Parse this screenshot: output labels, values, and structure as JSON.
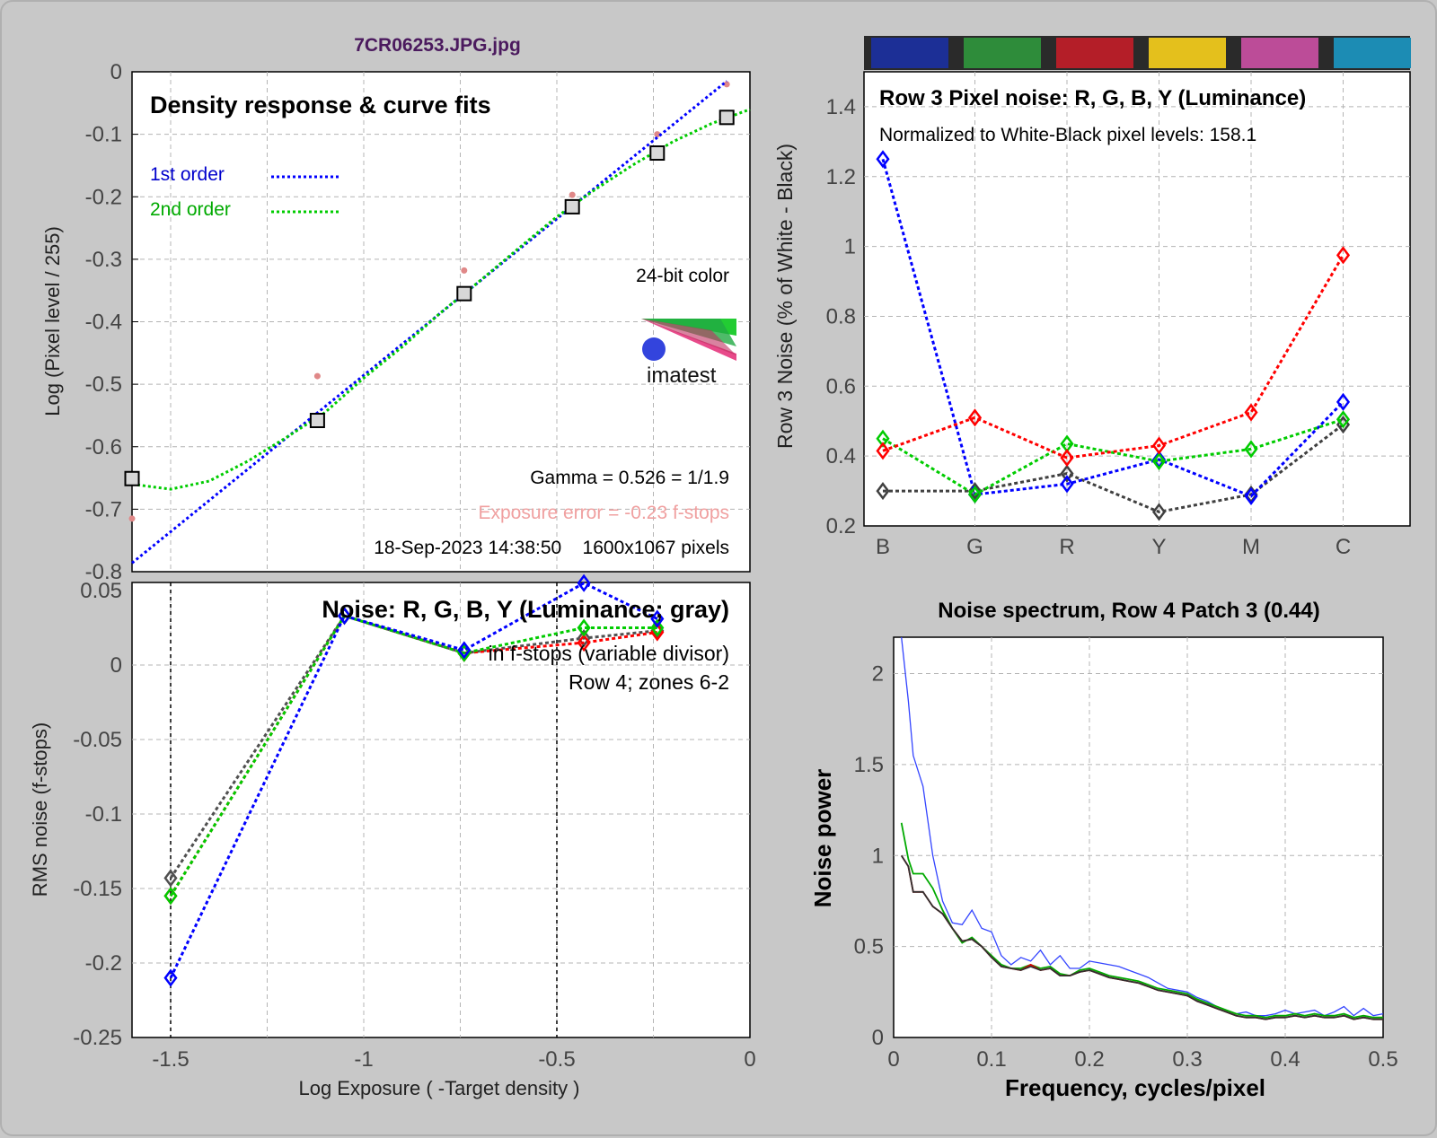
{
  "file_title": "7CR06253.JPG.jpg",
  "color_strip": [
    "#1c2f96",
    "#2e8c3a",
    "#b41e28",
    "#e4c01c",
    "#bc4c98",
    "#1c8cb4"
  ],
  "chart_data": [
    {
      "id": "density",
      "type": "line",
      "title": "Density response & curve fits",
      "xlabel": "Log Exposure ( -Target density )",
      "ylabel": "Log (Pixel level / 255)",
      "xlim": [
        -1.6,
        0
      ],
      "ylim": [
        -0.8,
        0
      ],
      "yticks": [
        "0",
        "-0.1",
        "-0.2",
        "-0.3",
        "-0.4",
        "-0.5",
        "-0.6",
        "-0.7",
        "-0.8"
      ],
      "legend": [
        {
          "label": "1st order",
          "color": "#0000ff"
        },
        {
          "label": "2nd order",
          "color": "#00cc00"
        }
      ],
      "bit_depth": "24-bit color",
      "logo_text": "imatest",
      "gamma_text": "Gamma = 0.526 = 1/1.9",
      "exposure_error_text": "Exposure error = -0.23 f-stops",
      "footer_text": "18-Sep-2023 14:38:50    1600x1067 pixels",
      "points": [
        {
          "x": -1.6,
          "y": -0.651
        },
        {
          "x": -1.12,
          "y": -0.558
        },
        {
          "x": -0.74,
          "y": -0.355
        },
        {
          "x": -0.46,
          "y": -0.216
        },
        {
          "x": -0.24,
          "y": -0.13
        },
        {
          "x": -0.06,
          "y": -0.073
        }
      ],
      "raw_points": [
        {
          "x": -1.6,
          "y": -0.715
        },
        {
          "x": -1.12,
          "y": -0.487
        },
        {
          "x": -0.74,
          "y": -0.318
        },
        {
          "x": -0.46,
          "y": -0.197
        },
        {
          "x": -0.24,
          "y": -0.1
        },
        {
          "x": -0.06,
          "y": -0.02
        }
      ],
      "fit1": [
        {
          "x": -1.6,
          "y": -0.786
        },
        {
          "x": -0.06,
          "y": -0.015
        }
      ],
      "fit2": [
        {
          "x": -1.6,
          "y": -0.66
        },
        {
          "x": -1.5,
          "y": -0.668
        },
        {
          "x": -1.4,
          "y": -0.655
        },
        {
          "x": -1.3,
          "y": -0.623
        },
        {
          "x": -1.2,
          "y": -0.585
        },
        {
          "x": -1.1,
          "y": -0.545
        },
        {
          "x": -1.0,
          "y": -0.49
        },
        {
          "x": -0.9,
          "y": -0.44
        },
        {
          "x": -0.8,
          "y": -0.385
        },
        {
          "x": -0.7,
          "y": -0.335
        },
        {
          "x": -0.6,
          "y": -0.283
        },
        {
          "x": -0.5,
          "y": -0.232
        },
        {
          "x": -0.4,
          "y": -0.188
        },
        {
          "x": -0.3,
          "y": -0.148
        },
        {
          "x": -0.2,
          "y": -0.112
        },
        {
          "x": -0.1,
          "y": -0.083
        },
        {
          "x": 0,
          "y": -0.06
        }
      ]
    },
    {
      "id": "row3-noise",
      "type": "line",
      "title": "Row 3 Pixel noise: R, G, B, Y (Luminance)",
      "subtitle": "Normalized to White-Black pixel levels: 158.1",
      "ylabel": "Row 3 Noise (% of White - Black)",
      "categories": [
        "B",
        "G",
        "R",
        "Y",
        "M",
        "C"
      ],
      "ylim": [
        0.2,
        1.5
      ],
      "yticks": [
        "0.2",
        "0.4",
        "0.6",
        "0.8",
        "1",
        "1.2",
        "1.4"
      ],
      "series": [
        {
          "name": "R",
          "color": "#ff0000",
          "values": [
            0.415,
            0.51,
            0.395,
            0.43,
            0.525,
            0.975
          ]
        },
        {
          "name": "G",
          "color": "#00cc00",
          "values": [
            0.45,
            0.29,
            0.435,
            0.385,
            0.42,
            0.505
          ]
        },
        {
          "name": "B",
          "color": "#0000ff",
          "values": [
            1.25,
            0.29,
            0.32,
            0.39,
            0.285,
            0.555
          ]
        },
        {
          "name": "Y",
          "color": "#404040",
          "values": [
            0.3,
            0.3,
            0.35,
            0.24,
            0.29,
            0.49
          ]
        }
      ]
    },
    {
      "id": "noise-fstops",
      "type": "line",
      "title": "Noise: R, G, B, Y (Luminance; gray)",
      "subtitle1": "in f-stops (variable divisor)",
      "subtitle2": "Row 4; zones 6-2",
      "ylabel": "RMS noise (f-stops)",
      "xlabel": "Log Exposure ( -Target density )",
      "xlim": [
        -1.6,
        0
      ],
      "ylim": [
        -0.25,
        0.05
      ],
      "yticks": [
        "0.05",
        "0",
        "-0.05",
        "-0.1",
        "-0.15",
        "-0.2",
        "-0.25"
      ],
      "xticks": [
        "-1.5",
        "-1",
        "-0.5",
        "0"
      ],
      "vlines": [
        -1.5,
        -0.5
      ],
      "series": [
        {
          "name": "R",
          "color": "#ff0000",
          "x": [
            -1.5,
            -1.05,
            -0.74,
            -0.43,
            -0.24
          ],
          "values": [
            -0.155,
            0.033,
            0.008,
            0.015,
            0.022
          ]
        },
        {
          "name": "G",
          "color": "#00cc00",
          "x": [
            -1.5,
            -1.05,
            -0.74,
            -0.43,
            -0.24
          ],
          "values": [
            -0.155,
            0.033,
            0.008,
            0.025,
            0.025
          ]
        },
        {
          "name": "B",
          "color": "#0000ff",
          "x": [
            -1.5,
            -1.05,
            -0.74,
            -0.43,
            -0.24
          ],
          "values": [
            -0.21,
            0.033,
            0.01,
            0.055,
            0.031
          ]
        },
        {
          "name": "Y",
          "color": "#505050",
          "x": [
            -1.5,
            -1.05,
            -0.74,
            -0.43,
            -0.24
          ],
          "values": [
            -0.143,
            0.033,
            0.008,
            0.018,
            0.023
          ]
        }
      ]
    },
    {
      "id": "noise-spectrum",
      "type": "line",
      "title": "Noise spectrum, Row 4 Patch 3 (0.44)",
      "xlabel": "Frequency, cycles/pixel",
      "ylabel": "Noise power",
      "xlim": [
        0,
        0.5
      ],
      "ylim": [
        0,
        2.2
      ],
      "xticks": [
        "0",
        "0.1",
        "0.2",
        "0.3",
        "0.4",
        "0.5"
      ],
      "yticks": [
        "0",
        "0.5",
        "1",
        "1.5",
        "2"
      ],
      "x": [
        0.008,
        0.015,
        0.02,
        0.03,
        0.04,
        0.05,
        0.06,
        0.07,
        0.08,
        0.09,
        0.1,
        0.11,
        0.12,
        0.13,
        0.14,
        0.15,
        0.16,
        0.17,
        0.18,
        0.19,
        0.2,
        0.21,
        0.22,
        0.23,
        0.24,
        0.25,
        0.26,
        0.27,
        0.28,
        0.29,
        0.3,
        0.31,
        0.32,
        0.33,
        0.34,
        0.35,
        0.36,
        0.37,
        0.38,
        0.39,
        0.4,
        0.41,
        0.42,
        0.43,
        0.44,
        0.45,
        0.46,
        0.47,
        0.48,
        0.49,
        0.5
      ],
      "series": [
        {
          "name": "Blue",
          "color": "#3344ff",
          "values": [
            2.2,
            1.85,
            1.55,
            1.38,
            1.0,
            0.75,
            0.63,
            0.62,
            0.7,
            0.6,
            0.58,
            0.45,
            0.4,
            0.44,
            0.42,
            0.48,
            0.4,
            0.45,
            0.38,
            0.38,
            0.42,
            0.41,
            0.4,
            0.39,
            0.37,
            0.35,
            0.33,
            0.3,
            0.27,
            0.26,
            0.25,
            0.22,
            0.2,
            0.17,
            0.15,
            0.13,
            0.14,
            0.12,
            0.12,
            0.13,
            0.15,
            0.13,
            0.14,
            0.15,
            0.12,
            0.14,
            0.17,
            0.12,
            0.16,
            0.12,
            0.13
          ]
        },
        {
          "name": "Green",
          "color": "#00aa00",
          "values": [
            1.18,
            0.98,
            0.9,
            0.9,
            0.82,
            0.7,
            0.6,
            0.52,
            0.55,
            0.5,
            0.45,
            0.4,
            0.38,
            0.38,
            0.4,
            0.38,
            0.39,
            0.35,
            0.34,
            0.37,
            0.38,
            0.36,
            0.34,
            0.33,
            0.32,
            0.31,
            0.29,
            0.27,
            0.26,
            0.25,
            0.24,
            0.21,
            0.19,
            0.17,
            0.15,
            0.13,
            0.12,
            0.12,
            0.11,
            0.12,
            0.12,
            0.13,
            0.12,
            0.13,
            0.12,
            0.12,
            0.13,
            0.11,
            0.12,
            0.11,
            0.11
          ]
        },
        {
          "name": "Red",
          "color": "#dd0000",
          "values": [
            1.0,
            0.94,
            0.8,
            0.8,
            0.72,
            0.68,
            0.6,
            0.53,
            0.54,
            0.5,
            0.44,
            0.39,
            0.38,
            0.37,
            0.4,
            0.37,
            0.38,
            0.34,
            0.34,
            0.36,
            0.37,
            0.35,
            0.33,
            0.32,
            0.31,
            0.3,
            0.28,
            0.26,
            0.25,
            0.24,
            0.23,
            0.2,
            0.18,
            0.16,
            0.14,
            0.12,
            0.11,
            0.11,
            0.1,
            0.11,
            0.11,
            0.12,
            0.11,
            0.12,
            0.11,
            0.11,
            0.12,
            0.1,
            0.11,
            0.1,
            0.1
          ]
        },
        {
          "name": "Gray",
          "color": "#303030",
          "values": [
            1.0,
            0.94,
            0.8,
            0.8,
            0.72,
            0.68,
            0.6,
            0.53,
            0.54,
            0.5,
            0.44,
            0.39,
            0.38,
            0.37,
            0.39,
            0.37,
            0.38,
            0.34,
            0.34,
            0.36,
            0.37,
            0.35,
            0.33,
            0.32,
            0.31,
            0.3,
            0.28,
            0.26,
            0.25,
            0.24,
            0.23,
            0.2,
            0.18,
            0.16,
            0.14,
            0.12,
            0.11,
            0.11,
            0.1,
            0.11,
            0.11,
            0.12,
            0.11,
            0.12,
            0.11,
            0.11,
            0.12,
            0.1,
            0.11,
            0.1,
            0.1
          ]
        }
      ]
    }
  ]
}
